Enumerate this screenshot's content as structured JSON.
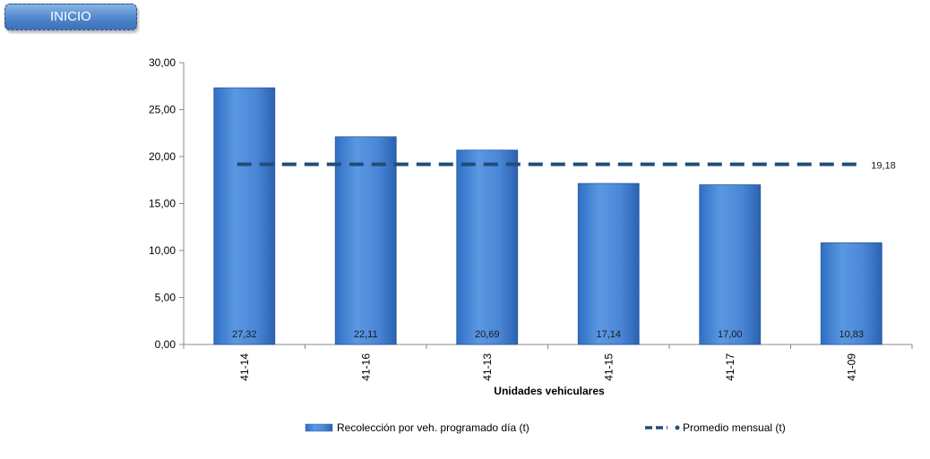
{
  "button": {
    "label": "INICIO"
  },
  "chart_data": {
    "type": "bar",
    "xlabel": "Unidades vehiculares",
    "ylabel": "",
    "ylim": [
      0,
      30
    ],
    "yticks": [
      "0,00",
      "5,00",
      "10,00",
      "15,00",
      "20,00",
      "25,00",
      "30,00"
    ],
    "categories": [
      "41-14",
      "41-16",
      "41-13",
      "41-15",
      "41-17",
      "41-09"
    ],
    "series": [
      {
        "name": "Recolección por veh. programado día (t)",
        "values": [
          27.32,
          22.11,
          20.69,
          17.14,
          17.0,
          10.83
        ],
        "labels": [
          "27,32",
          "22,11",
          "20,69",
          "17,14",
          "17,00",
          "10,83"
        ],
        "color": "#4a86d6"
      },
      {
        "name": "Promedio mensual (t)",
        "type": "line",
        "value": 19.18,
        "label": "19,18",
        "color": "#1f4e79"
      }
    ],
    "legend": "bottom",
    "grid": false
  }
}
